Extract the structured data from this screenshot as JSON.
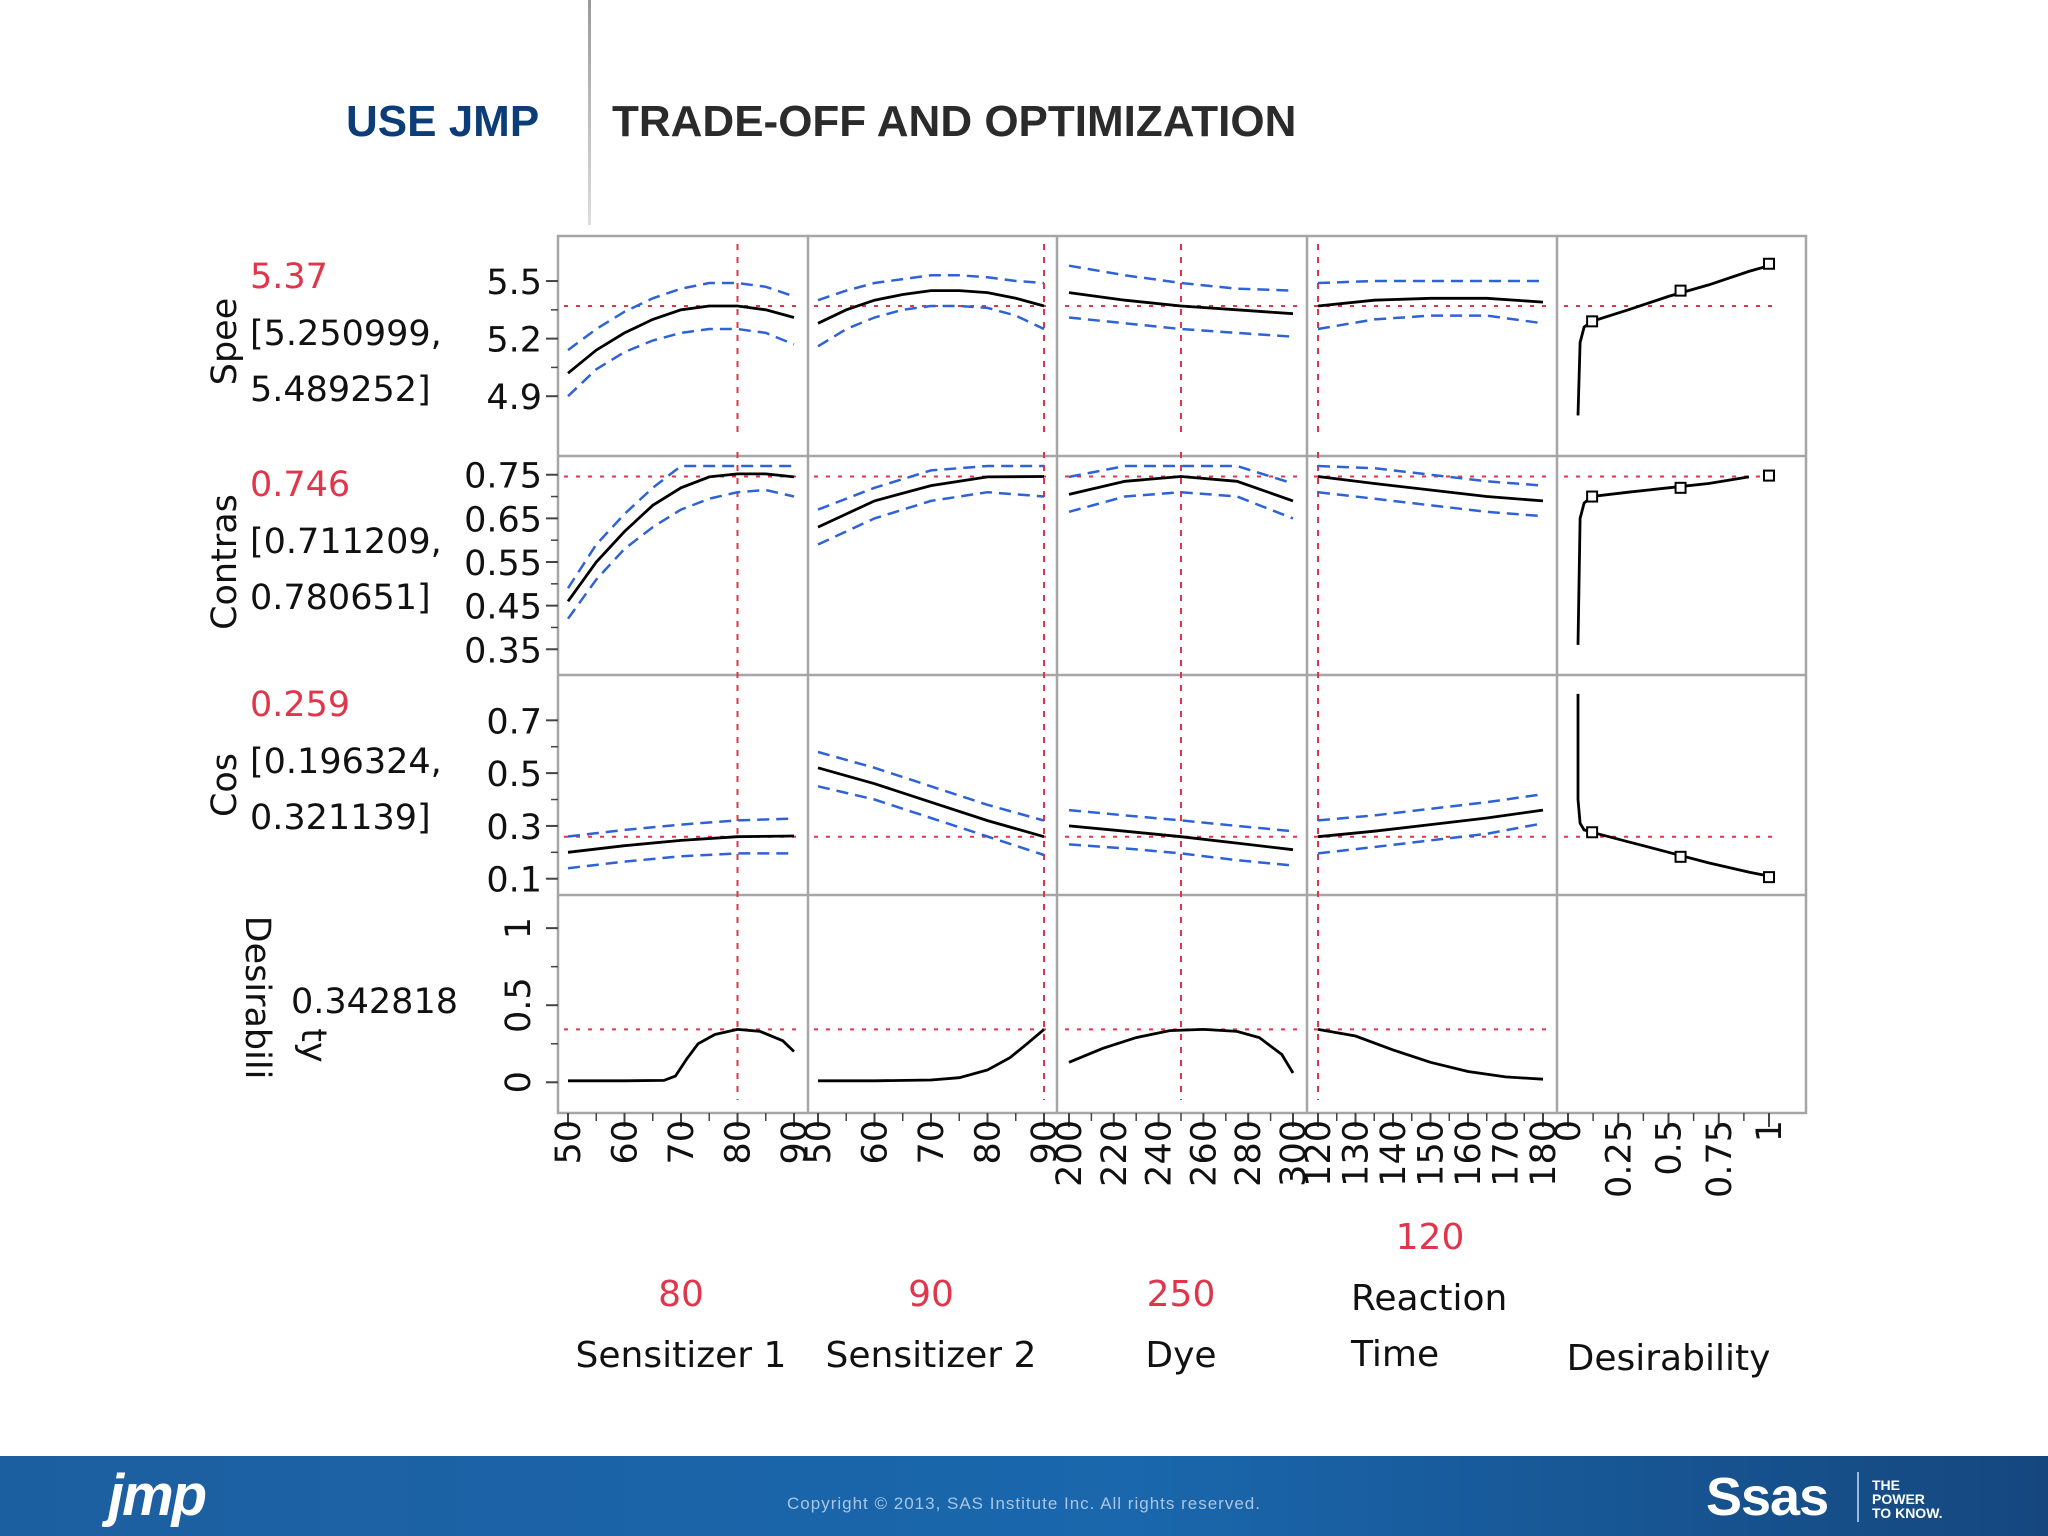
{
  "slide": {
    "title_left": "USE JMP",
    "title_right": "TRADE-OFF AND OPTIMIZATION",
    "footer_copyright": "Copyright © 2013, SAS Institute Inc. All rights reserved.",
    "jmp_logo": "jmp",
    "sas_logo": "Ssas",
    "tagline": [
      "THE",
      "POWER",
      "TO KNOW."
    ]
  },
  "colors": {
    "predicted": "#000000",
    "confidence": "#2e62d6",
    "reference": "#e0354a",
    "value_text": "#e0354a",
    "frame": "#a6a6a6",
    "footer": "#1a67ad"
  },
  "chart_data": {
    "type": "line",
    "subtype": "prediction-profiler",
    "factors": [
      {
        "name": "Sensitizer 1",
        "current": 80,
        "current_label": "80",
        "range": [
          50,
          90
        ],
        "ticks": [
          50,
          60,
          70,
          80,
          90
        ]
      },
      {
        "name": "Sensitizer 2",
        "current": 90,
        "current_label": "90",
        "range": [
          50,
          90
        ],
        "ticks": [
          50,
          60,
          70,
          80,
          90
        ]
      },
      {
        "name": "Dye",
        "current": 250,
        "current_label": "250",
        "range": [
          200,
          300
        ],
        "ticks": [
          200,
          220,
          240,
          260,
          280,
          300
        ]
      },
      {
        "name_lines": [
          "Reaction",
          "Time"
        ],
        "current": 120,
        "current_label": "120",
        "range": [
          120,
          180
        ],
        "ticks": [
          120,
          130,
          140,
          150,
          160,
          170,
          180
        ]
      },
      {
        "name": "Desirability",
        "range": [
          0,
          1
        ],
        "ticks": [
          0,
          0.25,
          0.5,
          0.75,
          1
        ]
      }
    ],
    "responses": [
      {
        "label": "Spee",
        "value": "5.37",
        "ci_lines": [
          "[5.250999,",
          "5.489252]"
        ],
        "current_value": 5.37,
        "ylim": [
          4.75,
          5.62
        ],
        "ticks": [
          4.9,
          5.2,
          5.5
        ],
        "profiles": [
          {
            "x": [
              50,
              55,
              60,
              65,
              70,
              75,
              80,
              85,
              90
            ],
            "pred": [
              5.02,
              5.14,
              5.23,
              5.3,
              5.35,
              5.37,
              5.37,
              5.35,
              5.31
            ],
            "lower": [
              4.9,
              5.04,
              5.13,
              5.19,
              5.23,
              5.25,
              5.25,
              5.23,
              5.17
            ],
            "upper": [
              5.14,
              5.25,
              5.34,
              5.41,
              5.46,
              5.49,
              5.49,
              5.47,
              5.42
            ]
          },
          {
            "x": [
              50,
              55,
              60,
              65,
              70,
              75,
              80,
              85,
              90
            ],
            "pred": [
              5.28,
              5.35,
              5.4,
              5.43,
              5.45,
              5.45,
              5.44,
              5.41,
              5.37
            ],
            "lower": [
              5.16,
              5.25,
              5.31,
              5.35,
              5.37,
              5.37,
              5.36,
              5.32,
              5.25
            ],
            "upper": [
              5.4,
              5.45,
              5.49,
              5.51,
              5.53,
              5.53,
              5.52,
              5.5,
              5.49
            ]
          },
          {
            "x": [
              200,
              225,
              250,
              275,
              300
            ],
            "pred": [
              5.44,
              5.4,
              5.37,
              5.35,
              5.33
            ],
            "lower": [
              5.31,
              5.28,
              5.25,
              5.23,
              5.21
            ],
            "upper": [
              5.58,
              5.53,
              5.49,
              5.46,
              5.45
            ]
          },
          {
            "x": [
              120,
              135,
              150,
              165,
              180
            ],
            "pred": [
              5.37,
              5.4,
              5.41,
              5.41,
              5.39
            ],
            "lower": [
              5.25,
              5.3,
              5.32,
              5.32,
              5.28
            ],
            "upper": [
              5.49,
              5.5,
              5.5,
              5.5,
              5.5
            ]
          },
          {
            "x": [
              0.05,
              0.06,
              0.08,
              0.12,
              0.3,
              0.5,
              0.7,
              0.9,
              1.0
            ],
            "pred": [
              4.8,
              5.18,
              5.26,
              5.29,
              5.35,
              5.42,
              5.48,
              5.55,
              5.58
            ],
            "markers": [
              [
                0.12,
                5.29
              ],
              [
                0.56,
                5.45
              ],
              [
                1.0,
                5.59
              ]
            ]
          }
        ]
      },
      {
        "label": "Contras",
        "value": "0.746",
        "ci_lines": [
          "[0.711209,",
          "0.780651]"
        ],
        "current_value": 0.746,
        "ylim": [
          0.33,
          0.77
        ],
        "ticks": [
          0.35,
          0.45,
          0.55,
          0.65,
          0.75
        ],
        "profiles": [
          {
            "x": [
              50,
              55,
              60,
              65,
              70,
              75,
              80,
              85,
              90
            ],
            "pred": [
              0.46,
              0.55,
              0.62,
              0.68,
              0.72,
              0.745,
              0.752,
              0.752,
              0.745
            ],
            "lower": [
              0.42,
              0.51,
              0.58,
              0.63,
              0.67,
              0.695,
              0.71,
              0.715,
              0.7
            ],
            "upper": [
              0.49,
              0.59,
              0.66,
              0.72,
              0.77,
              0.79,
              0.79,
              0.78,
              0.78
            ]
          },
          {
            "x": [
              50,
              60,
              70,
              80,
              90
            ],
            "pred": [
              0.63,
              0.69,
              0.725,
              0.745,
              0.746
            ],
            "lower": [
              0.59,
              0.65,
              0.69,
              0.71,
              0.7
            ],
            "upper": [
              0.67,
              0.72,
              0.76,
              0.78,
              0.79
            ]
          },
          {
            "x": [
              200,
              225,
              250,
              275,
              300
            ],
            "pred": [
              0.705,
              0.735,
              0.746,
              0.735,
              0.69
            ],
            "lower": [
              0.665,
              0.7,
              0.71,
              0.7,
              0.65
            ],
            "upper": [
              0.745,
              0.77,
              0.78,
              0.77,
              0.73
            ]
          },
          {
            "x": [
              120,
              135,
              150,
              165,
              180
            ],
            "pred": [
              0.746,
              0.73,
              0.715,
              0.7,
              0.69
            ],
            "lower": [
              0.71,
              0.695,
              0.68,
              0.665,
              0.655
            ],
            "upper": [
              0.78,
              0.765,
              0.75,
              0.735,
              0.725
            ]
          },
          {
            "x": [
              0.05,
              0.06,
              0.08,
              0.12,
              0.3,
              0.5,
              0.7,
              0.9
            ],
            "pred": [
              0.36,
              0.65,
              0.685,
              0.7,
              0.71,
              0.72,
              0.73,
              0.745
            ],
            "markers": [
              [
                0.12,
                0.7
              ],
              [
                0.56,
                0.72
              ],
              [
                1.0,
                0.748
              ]
            ]
          }
        ]
      },
      {
        "label": "Cos",
        "value": "0.259",
        "ci_lines": [
          "[0.196324,",
          "0.321139]"
        ],
        "current_value": 0.259,
        "ylim": [
          0.08,
          0.83
        ],
        "ticks": [
          0.1,
          0.3,
          0.5,
          0.7
        ],
        "profiles": [
          {
            "x": [
              50,
              60,
              70,
              80,
              90
            ],
            "pred": [
              0.2,
              0.225,
              0.245,
              0.259,
              0.262
            ],
            "lower": [
              0.14,
              0.165,
              0.185,
              0.196,
              0.196
            ],
            "upper": [
              0.26,
              0.285,
              0.305,
              0.321,
              0.328
            ]
          },
          {
            "x": [
              50,
              60,
              70,
              80,
              90
            ],
            "pred": [
              0.52,
              0.46,
              0.39,
              0.32,
              0.259
            ],
            "lower": [
              0.45,
              0.4,
              0.33,
              0.26,
              0.19
            ],
            "upper": [
              0.58,
              0.52,
              0.45,
              0.38,
              0.32
            ]
          },
          {
            "x": [
              200,
              225,
              250,
              275,
              300
            ],
            "pred": [
              0.3,
              0.28,
              0.259,
              0.235,
              0.21
            ],
            "lower": [
              0.23,
              0.215,
              0.196,
              0.17,
              0.15
            ],
            "upper": [
              0.36,
              0.34,
              0.321,
              0.3,
              0.28
            ]
          },
          {
            "x": [
              120,
              135,
              150,
              165,
              180
            ],
            "pred": [
              0.259,
              0.28,
              0.305,
              0.33,
              0.36
            ],
            "lower": [
              0.196,
              0.22,
              0.245,
              0.27,
              0.31
            ],
            "upper": [
              0.321,
              0.34,
              0.365,
              0.39,
              0.42
            ]
          },
          {
            "x": [
              0.05,
              0.05,
              0.06,
              0.08,
              0.12,
              0.3,
              0.5,
              0.7,
              0.9,
              1.0
            ],
            "pred": [
              0.8,
              0.4,
              0.31,
              0.285,
              0.276,
              0.24,
              0.2,
              0.16,
              0.125,
              0.11
            ],
            "markers": [
              [
                0.12,
                0.276
              ],
              [
                0.56,
                0.183
              ],
              [
                1.0,
                0.106
              ]
            ]
          }
        ]
      },
      {
        "label_lines": [
          "Desirabili",
          "ty"
        ],
        "value": "0.342818",
        "current_value": 0.343,
        "ylim": [
          -0.05,
          1.15
        ],
        "ticks": [
          0,
          0.5,
          1
        ],
        "profiles": [
          {
            "x": [
              50,
              60,
              67,
              69,
              71,
              73,
              76,
              80,
              84,
              88,
              90
            ],
            "pred": [
              0.01,
              0.01,
              0.012,
              0.04,
              0.15,
              0.25,
              0.31,
              0.343,
              0.33,
              0.27,
              0.2
            ]
          },
          {
            "x": [
              50,
              60,
              70,
              75,
              80,
              84,
              87,
              90
            ],
            "pred": [
              0.01,
              0.01,
              0.015,
              0.03,
              0.08,
              0.16,
              0.25,
              0.343
            ]
          },
          {
            "x": [
              200,
              215,
              230,
              245,
              260,
              275,
              285,
              295,
              300
            ],
            "pred": [
              0.13,
              0.22,
              0.29,
              0.335,
              0.343,
              0.33,
              0.29,
              0.18,
              0.06
            ]
          },
          {
            "x": [
              120,
              130,
              140,
              150,
              160,
              170,
              180
            ],
            "pred": [
              0.343,
              0.3,
              0.21,
              0.13,
              0.07,
              0.035,
              0.02
            ]
          }
        ]
      }
    ]
  }
}
